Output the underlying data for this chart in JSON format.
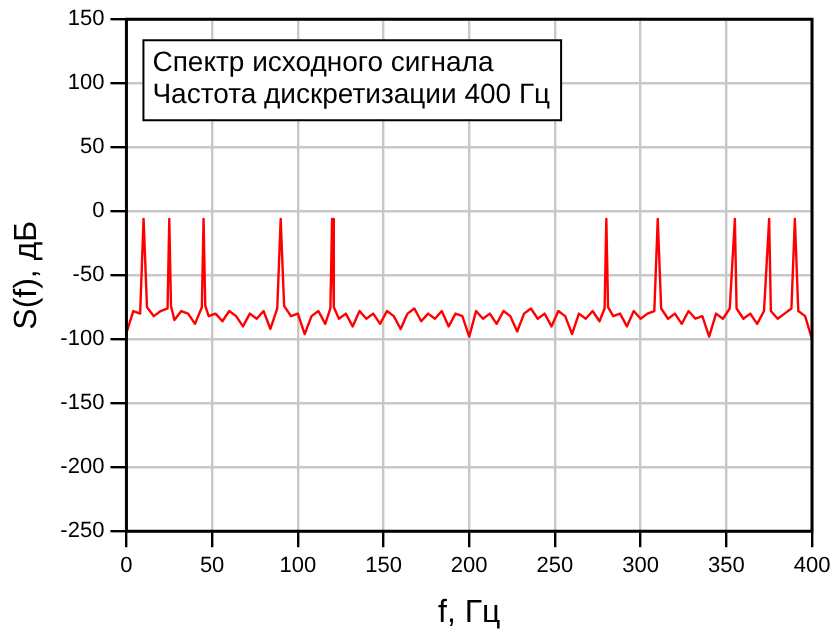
{
  "chart_data": {
    "type": "line",
    "xlabel": "f, Гц",
    "ylabel": "S(f), дБ",
    "annotations": [
      "Спектр исходного сигнала",
      "Частота дискретизации 400 Гц"
    ],
    "xlim": [
      0,
      400
    ],
    "xticks": [
      0,
      50,
      100,
      150,
      200,
      250,
      300,
      350,
      400
    ],
    "ylim": [
      -250,
      150
    ],
    "yticks": [
      -250,
      -200,
      -150,
      -100,
      -50,
      0,
      50,
      100,
      150
    ],
    "grid": true,
    "legend": false,
    "marker": "none",
    "line_style": "solid",
    "series": [
      {
        "color": "#ff0000",
        "x": [
          0,
          4,
          8,
          10,
          12,
          16,
          20,
          24,
          25,
          26,
          28,
          32,
          36,
          40,
          44,
          45,
          46,
          48,
          52,
          56,
          60,
          64,
          68,
          72,
          76,
          80,
          84,
          88,
          90,
          92,
          96,
          100,
          104,
          108,
          112,
          116,
          119,
          120,
          121,
          124,
          128,
          132,
          136,
          140,
          144,
          148,
          152,
          156,
          160,
          164,
          168,
          172,
          176,
          180,
          184,
          188,
          192,
          196,
          200,
          204,
          208,
          212,
          216,
          220,
          224,
          228,
          232,
          236,
          240,
          244,
          248,
          252,
          256,
          260,
          264,
          268,
          272,
          276,
          279,
          280,
          281,
          284,
          288,
          292,
          296,
          300,
          304,
          308,
          310,
          312,
          316,
          320,
          324,
          328,
          332,
          336,
          340,
          344,
          348,
          352,
          355,
          356,
          360,
          364,
          368,
          372,
          375,
          376,
          380,
          384,
          388,
          390,
          392,
          396,
          400
        ],
        "values": [
          -95,
          -78,
          -80,
          -6,
          -75,
          -82,
          -78,
          -76,
          -6,
          -74,
          -85,
          -78,
          -80,
          -88,
          -75,
          -6,
          -74,
          -82,
          -80,
          -86,
          -78,
          -82,
          -90,
          -80,
          -84,
          -78,
          -92,
          -76,
          -6,
          -74,
          -82,
          -80,
          -96,
          -82,
          -78,
          -88,
          -76,
          -6,
          -75,
          -84,
          -80,
          -90,
          -78,
          -84,
          -80,
          -88,
          -78,
          -82,
          -92,
          -80,
          -76,
          -86,
          -80,
          -84,
          -78,
          -90,
          -80,
          -82,
          -98,
          -78,
          -84,
          -80,
          -88,
          -78,
          -82,
          -94,
          -80,
          -76,
          -84,
          -80,
          -90,
          -78,
          -82,
          -96,
          -80,
          -84,
          -78,
          -86,
          -76,
          -6,
          -75,
          -82,
          -80,
          -90,
          -78,
          -84,
          -80,
          -78,
          -6,
          -76,
          -84,
          -80,
          -88,
          -78,
          -84,
          -82,
          -98,
          -80,
          -84,
          -76,
          -6,
          -76,
          -84,
          -80,
          -88,
          -78,
          -6,
          -78,
          -84,
          -80,
          -76,
          -6,
          -78,
          -82,
          -100
        ]
      }
    ]
  }
}
